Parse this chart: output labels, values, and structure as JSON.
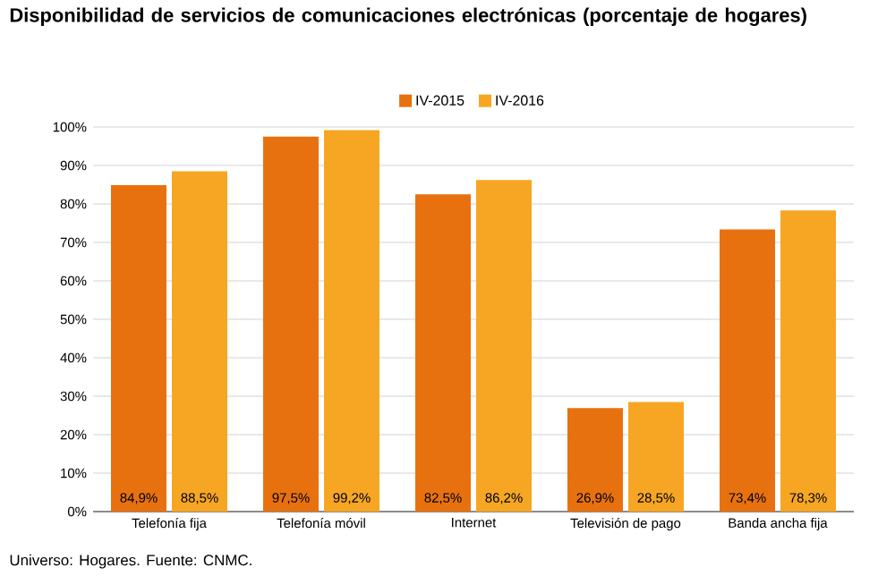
{
  "chart_data": {
    "type": "bar",
    "title": "Disponibilidad de servicios de comunicaciones electrónicas (porcentaje de hogares)",
    "categories": [
      "Telefonía fija",
      "Telefonía móvil",
      "Internet",
      "Televisión de pago",
      "Banda ancha fija"
    ],
    "series": [
      {
        "name": "IV-2015",
        "color": "#e8710f",
        "values": [
          84.9,
          97.5,
          82.5,
          26.9,
          73.4
        ],
        "value_labels": [
          "84,9%",
          "97,5%",
          "82,5%",
          "26,9%",
          "73,4%"
        ]
      },
      {
        "name": "IV-2016",
        "color": "#f6a623",
        "values": [
          88.5,
          99.2,
          86.2,
          28.5,
          78.3
        ],
        "value_labels": [
          "88,5%",
          "99,2%",
          "86,2%",
          "28,5%",
          "78,3%"
        ]
      }
    ],
    "ylim": [
      0,
      100
    ],
    "yticks": [
      {
        "value": 0,
        "label": "0%"
      },
      {
        "value": 10,
        "label": "10%"
      },
      {
        "value": 20,
        "label": "20%"
      },
      {
        "value": 30,
        "label": "30%"
      },
      {
        "value": 40,
        "label": "40%"
      },
      {
        "value": 50,
        "label": "50%"
      },
      {
        "value": 60,
        "label": "60%"
      },
      {
        "value": 70,
        "label": "70%"
      },
      {
        "value": 80,
        "label": "80%"
      },
      {
        "value": 90,
        "label": "90%"
      },
      {
        "value": 100,
        "label": "100%"
      }
    ],
    "grid": "y",
    "legend": "top",
    "annotations": [
      "Universo: Hogares. Fuente: CNMC."
    ]
  }
}
